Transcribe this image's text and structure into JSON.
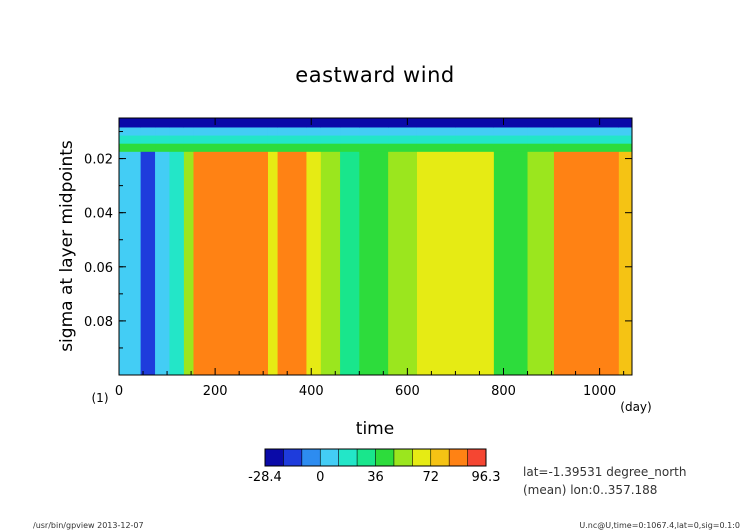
{
  "window": {
    "title": "gpview"
  },
  "chart_data": {
    "type": "heatmap",
    "title": "eastward wind",
    "xlabel": "time",
    "x_unit": "(day)",
    "ylabel": "sigma at layer midpoints",
    "y_unit": "(1)",
    "xlim": [
      0,
      1067.4
    ],
    "ylim": [
      0.1,
      0.005
    ],
    "y_inverted": true,
    "xticks": [
      0,
      200,
      400,
      600,
      800,
      1000
    ],
    "yticks": [
      0.02,
      0.04,
      0.06,
      0.08
    ],
    "ytick_labels": [
      "0.02",
      "0.04",
      "0.06",
      "0.08"
    ],
    "grid": false,
    "colorbar": {
      "placement": "bottom",
      "levels": [
        -28.4,
        -16.0,
        -4.0,
        0,
        12,
        24,
        36,
        48,
        60,
        72,
        84,
        90,
        96.3
      ],
      "labels": [
        "-28.4",
        "0",
        "36",
        "72",
        "96.3"
      ],
      "colors": [
        "#0a0aa8",
        "#1e3cdc",
        "#2d8cf0",
        "#43cdf5",
        "#23e6c8",
        "#19e68c",
        "#2ddc3c",
        "#9be61e",
        "#e6eb14",
        "#f5c314",
        "#ff8214",
        "#f54632"
      ]
    },
    "vertical_profile": [
      {
        "sigma_top": 0.005,
        "sigma_bottom": 0.0085,
        "value": -18
      },
      {
        "sigma_top": 0.0085,
        "sigma_bottom": 0.0115,
        "value": 3
      },
      {
        "sigma_top": 0.0115,
        "sigma_bottom": 0.0145,
        "value": 18
      },
      {
        "sigma_top": 0.0145,
        "sigma_bottom": 0.0175,
        "value": 42
      },
      {
        "sigma_top": 0.0175,
        "sigma_bottom": 0.1,
        "value": "column"
      }
    ],
    "time_segments": [
      {
        "t_start": 0,
        "t_end": 45,
        "value": 4
      },
      {
        "t_start": 45,
        "t_end": 75,
        "value": -8
      },
      {
        "t_start": 75,
        "t_end": 105,
        "value": 10
      },
      {
        "t_start": 105,
        "t_end": 135,
        "value": 20
      },
      {
        "t_start": 135,
        "t_end": 155,
        "value": 55
      },
      {
        "t_start": 155,
        "t_end": 310,
        "value": 88
      },
      {
        "t_start": 310,
        "t_end": 330,
        "value": 70
      },
      {
        "t_start": 330,
        "t_end": 390,
        "value": 84
      },
      {
        "t_start": 390,
        "t_end": 420,
        "value": 68
      },
      {
        "t_start": 420,
        "t_end": 460,
        "value": 52
      },
      {
        "t_start": 460,
        "t_end": 500,
        "value": 26
      },
      {
        "t_start": 500,
        "t_end": 560,
        "value": 40
      },
      {
        "t_start": 560,
        "t_end": 620,
        "value": 55
      },
      {
        "t_start": 620,
        "t_end": 700,
        "value": 66
      },
      {
        "t_start": 700,
        "t_end": 780,
        "value": 64
      },
      {
        "t_start": 780,
        "t_end": 850,
        "value": 44
      },
      {
        "t_start": 850,
        "t_end": 905,
        "value": 58
      },
      {
        "t_start": 905,
        "t_end": 1040,
        "value": 88
      },
      {
        "t_start": 1040,
        "t_end": 1067.4,
        "value": 80
      }
    ],
    "info_text": [
      "lat=-1.39531 degree_north",
      "(mean) lon:0..357.188"
    ]
  },
  "footer": {
    "left": "/usr/bin/gpview  2013-12-07",
    "right": "U.nc@U,time=0:1067.4,lat=0,sig=0.1:0"
  }
}
